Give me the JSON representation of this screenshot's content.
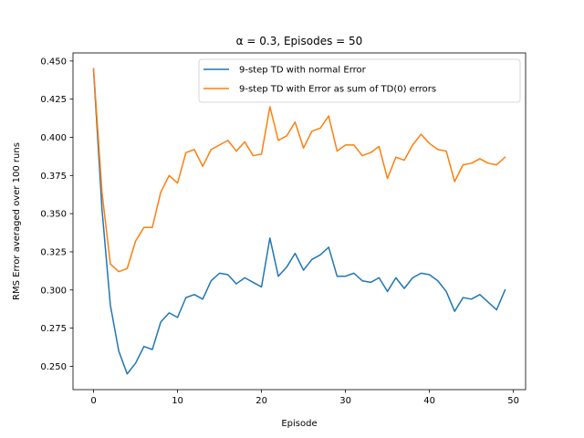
{
  "chart_data": {
    "type": "line",
    "title": "α = 0.3, Episodes = 50",
    "xlabel": "Episode",
    "ylabel": "RMS Error averaged over 100 runs",
    "xlim": [
      -2.45,
      51.45
    ],
    "ylim": [
      0.2347,
      0.4553
    ],
    "xticks": [
      0,
      10,
      20,
      30,
      40,
      50
    ],
    "yticks": [
      0.25,
      0.275,
      0.3,
      0.325,
      0.35,
      0.375,
      0.4,
      0.425,
      0.45
    ],
    "ytick_labels": [
      "0.250",
      "0.275",
      "0.300",
      "0.325",
      "0.350",
      "0.375",
      "0.400",
      "0.425",
      "0.450"
    ],
    "grid": false,
    "legend_position": "top-right",
    "x": [
      0,
      1,
      2,
      3,
      4,
      5,
      6,
      7,
      8,
      9,
      10,
      11,
      12,
      13,
      14,
      15,
      16,
      17,
      18,
      19,
      20,
      21,
      22,
      23,
      24,
      25,
      26,
      27,
      28,
      29,
      30,
      31,
      32,
      33,
      34,
      35,
      36,
      37,
      38,
      39,
      40,
      41,
      42,
      43,
      44,
      45,
      46,
      47,
      48,
      49
    ],
    "series": [
      {
        "name": "9-step TD with normal Error",
        "color": "#1f77b4",
        "values": [
          0.444,
          0.353,
          0.29,
          0.26,
          0.245,
          0.252,
          0.263,
          0.261,
          0.279,
          0.285,
          0.282,
          0.295,
          0.297,
          0.294,
          0.306,
          0.311,
          0.31,
          0.304,
          0.308,
          0.305,
          0.302,
          0.334,
          0.309,
          0.315,
          0.324,
          0.313,
          0.32,
          0.323,
          0.328,
          0.309,
          0.309,
          0.311,
          0.306,
          0.305,
          0.308,
          0.299,
          0.308,
          0.301,
          0.308,
          0.311,
          0.31,
          0.306,
          0.299,
          0.286,
          0.295,
          0.294,
          0.297,
          0.292,
          0.287,
          0.3
        ]
      },
      {
        "name": "9-step TD with Error as sum of TD(0) errors",
        "color": "#ff7f0e",
        "values": [
          0.445,
          0.364,
          0.317,
          0.312,
          0.314,
          0.332,
          0.341,
          0.341,
          0.364,
          0.375,
          0.37,
          0.39,
          0.392,
          0.381,
          0.392,
          0.395,
          0.398,
          0.391,
          0.397,
          0.388,
          0.389,
          0.42,
          0.398,
          0.401,
          0.41,
          0.393,
          0.404,
          0.406,
          0.414,
          0.391,
          0.395,
          0.395,
          0.388,
          0.39,
          0.394,
          0.373,
          0.387,
          0.385,
          0.395,
          0.402,
          0.396,
          0.392,
          0.391,
          0.371,
          0.382,
          0.383,
          0.386,
          0.383,
          0.382,
          0.387
        ]
      }
    ]
  }
}
